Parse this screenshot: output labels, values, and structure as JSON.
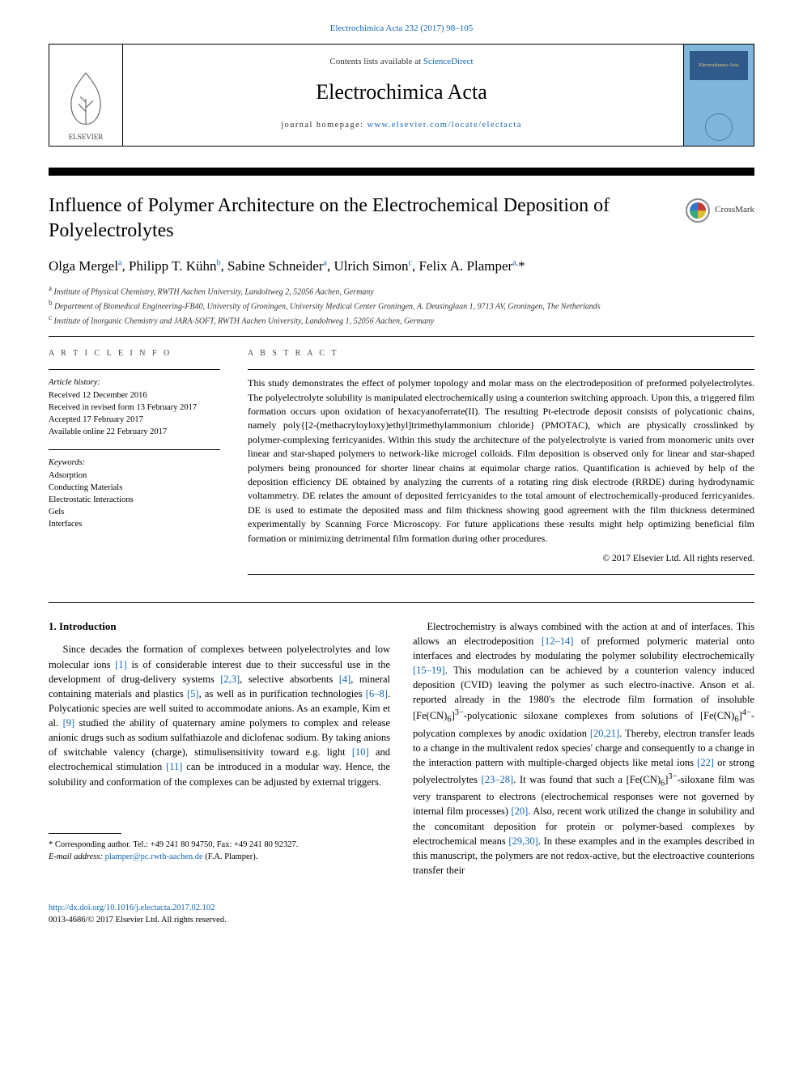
{
  "header": {
    "top_ref": "Electrochimica Acta 232 (2017) 98–105",
    "contents_prefix": "Contents lists available at ",
    "contents_link": "ScienceDirect",
    "journal": "Electrochimica Acta",
    "homepage_prefix": "journal homepage: ",
    "homepage_link": "www.elsevier.com/locate/electacta",
    "elsevier_label": "ELSEVIER",
    "cover_label1": "Electrochimica",
    "cover_label2": "Acta"
  },
  "crossmark": {
    "label": "CrossMark"
  },
  "article": {
    "title": "Influence of Polymer Architecture on the Electrochemical Deposition of Polyelectrolytes",
    "authors_html": "Olga Mergel<sup class='aff-sup'>a</sup>, Philipp T. Kühn<sup class='aff-sup'>b</sup>, Sabine Schneider<sup class='aff-sup'>a</sup>, Ulrich Simon<sup class='aff-sup'>c</sup>, Felix A. Plamper<sup class='aff-sup'>a,</sup>*",
    "affiliations": {
      "a": "Institute of Physical Chemistry, RWTH Aachen University, Landoltweg 2, 52056 Aachen, Germany",
      "b": "Department of Biomedical Engineering-FB40, University of Groningen, University Medical Center Groningen, A. Deusinglaan 1, 9713 AV, Groningen, The Netherlands",
      "c": "Institute of Inorganic Chemistry and JARA-SOFT, RWTH Aachen University, Landoltweg 1, 52056 Aachen, Germany"
    }
  },
  "info": {
    "heading": "A R T I C L E   I N F O",
    "history_label": "Article history:",
    "history": [
      "Received 12 December 2016",
      "Received in revised form 13 February 2017",
      "Accepted 17 February 2017",
      "Available online 22 February 2017"
    ],
    "keywords_label": "Keywords:",
    "keywords": [
      "Adsorption",
      "Conducting Materials",
      "Electrostatic Interactions",
      "Gels",
      "Interfaces"
    ]
  },
  "abstract": {
    "heading": "A B S T R A C T",
    "text": "This study demonstrates the effect of polymer topology and molar mass on the electrodeposition of preformed polyelectrolytes. The polyelectrolyte solubility is manipulated electrochemically using a counterion switching approach. Upon this, a triggered film formation occurs upon oxidation of hexacyanoferrate(II). The resulting Pt-electrode deposit consists of polycationic chains, namely poly{[2-(methacryloyloxy)ethyl]trimethylammonium chloride} (PMOTAC), which are physically crosslinked by polymer-complexing ferricyanides. Within this study the architecture of the polyelectrolyte is varied from monomeric units over linear and star-shaped polymers to network-like microgel colloids. Film deposition is observed only for linear and star-shaped polymers being pronounced for shorter linear chains at equimolar charge ratios. Quantification is achieved by help of the deposition efficiency DE obtained by analyzing the currents of a rotating ring disk electrode (RRDE) during hydrodynamic voltammetry. DE relates the amount of deposited ferricyanides to the total amount of electrochemically-produced ferricyanides. DE is used to estimate the deposited mass and film thickness showing good agreement with the film thickness determined experimentally by Scanning Force Microscopy. For future applications these results might help optimizing beneficial film formation or minimizing detrimental film formation during other procedures.",
    "copyright": "© 2017 Elsevier Ltd. All rights reserved."
  },
  "body": {
    "section_title": "1. Introduction",
    "col1_html": "Since decades the formation of complexes between polyelectrolytes and low molecular ions <a class='ref' href='#'>[1]</a> is of considerable interest due to their successful use in the development of drug-delivery systems <a class='ref' href='#'>[2,3]</a>, selective absorbents <a class='ref' href='#'>[4]</a>, mineral containing materials and plastics <a class='ref' href='#'>[5]</a>, as well as in purification technologies <a class='ref' href='#'>[6–8]</a>. Polycationic species are well suited to accommodate anions. As an example, Kim et al. <a class='ref' href='#'>[9]</a> studied the ability of quaternary amine polymers to complex and release anionic drugs such as sodium sulfathiazole and diclofenac sodium. By taking anions of switchable valency (charge), stimulisensitivity toward e.g. light <a class='ref' href='#'>[10]</a> and electrochemical stimulation <a class='ref' href='#'>[11]</a> can be introduced in a modular way. Hence, the solubility and conformation of the complexes can be adjusted by external triggers.",
    "col2_html": "Electrochemistry is always combined with the action at and of interfaces. This allows an electrodeposition <a class='ref' href='#'>[12–14]</a> of preformed polymeric material onto interfaces and electrodes by modulating the polymer solubility electrochemically <a class='ref' href='#'>[15–19]</a>. This modulation can be achieved by a counterion valency induced deposition (CVID) leaving the polymer as such electro-inactive. Anson et al. reported already in the 1980's the electrode film formation of insoluble [Fe(CN)<sub>6</sub>]<sup>3−</sup>-polycationic siloxane complexes from solutions of [Fe(CN)<sub>6</sub>]<sup>4−</sup>-polycation complexes by anodic oxidation <a class='ref' href='#'>[20,21]</a>. Thereby, electron transfer leads to a change in the multivalent redox species' charge and consequently to a change in the interaction pattern with multiple-charged objects like metal ions <a class='ref' href='#'>[22]</a> or strong polyelectrolytes <a class='ref' href='#'>[23–28]</a>. It was found that such a [Fe(CN)<sub>6</sub>]<sup>3−</sup>-siloxane film was very transparent to electrons (electrochemical responses were not governed by internal film processes) <a class='ref' href='#'>[20]</a>. Also, recent work utilized the change in solubility and the concomitant deposition for protein or polymer-based complexes by electrochemical means <a class='ref' href='#'>[29,30]</a>. In these examples and in the examples described in this manuscript, the polymers are not redox-active, but the electroactive counterions transfer their"
  },
  "footnote": {
    "line1": "* Corresponding author. Tel.: +49 241 80 94750, Fax: +49 241 80 92327.",
    "email_label": "E-mail address: ",
    "email_value": "plamper@pc.rwth-aachen.de",
    "email_paren": " (F.A. Plamper)."
  },
  "bottom": {
    "doi": "http://dx.doi.org/10.1016/j.electacta.2017.02.102",
    "issn_line": "0013-4686/© 2017 Elsevier Ltd. All rights reserved."
  },
  "colors": {
    "link": "#1266b3",
    "cover_bg": "#7fb6d9",
    "cover_panel": "#2f5a8a",
    "cover_text": "#eac77a"
  }
}
